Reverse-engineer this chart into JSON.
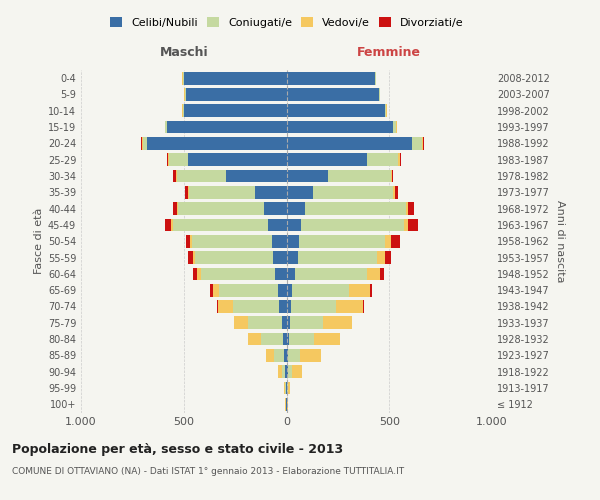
{
  "age_groups": [
    "100+",
    "95-99",
    "90-94",
    "85-89",
    "80-84",
    "75-79",
    "70-74",
    "65-69",
    "60-64",
    "55-59",
    "50-54",
    "45-49",
    "40-44",
    "35-39",
    "30-34",
    "25-29",
    "20-24",
    "15-19",
    "10-14",
    "5-9",
    "0-4"
  ],
  "birth_years": [
    "≤ 1912",
    "1913-1917",
    "1918-1922",
    "1923-1927",
    "1928-1932",
    "1933-1937",
    "1938-1942",
    "1943-1947",
    "1948-1952",
    "1953-1957",
    "1958-1962",
    "1963-1967",
    "1968-1972",
    "1973-1977",
    "1978-1982",
    "1983-1987",
    "1988-1992",
    "1993-1997",
    "1998-2002",
    "2003-2007",
    "2008-2012"
  ],
  "colors": {
    "celibe": "#3a6ea5",
    "coniugato": "#c5d9a0",
    "vedovo": "#f5c860",
    "divorziato": "#cc1111"
  },
  "males": {
    "celibe": [
      2,
      2,
      5,
      10,
      15,
      20,
      35,
      40,
      55,
      65,
      70,
      90,
      110,
      155,
      295,
      480,
      680,
      580,
      500,
      490,
      500
    ],
    "coniugato": [
      2,
      3,
      15,
      50,
      110,
      165,
      225,
      290,
      360,
      380,
      390,
      460,
      420,
      320,
      240,
      90,
      20,
      10,
      5,
      5,
      5
    ],
    "vedovo": [
      2,
      5,
      20,
      40,
      60,
      70,
      75,
      30,
      20,
      10,
      10,
      10,
      5,
      5,
      5,
      5,
      5,
      2,
      2,
      2,
      2
    ],
    "divorziato": [
      0,
      0,
      0,
      0,
      0,
      0,
      5,
      10,
      20,
      25,
      20,
      30,
      15,
      15,
      10,
      5,
      2,
      0,
      0,
      0,
      0
    ]
  },
  "females": {
    "nubile": [
      2,
      2,
      5,
      8,
      12,
      15,
      20,
      25,
      40,
      55,
      60,
      70,
      90,
      130,
      200,
      390,
      610,
      520,
      480,
      450,
      430
    ],
    "coniugata": [
      2,
      5,
      20,
      60,
      120,
      165,
      220,
      280,
      350,
      385,
      420,
      500,
      490,
      390,
      310,
      155,
      50,
      15,
      5,
      5,
      5
    ],
    "vedova": [
      2,
      8,
      50,
      100,
      130,
      140,
      130,
      100,
      65,
      40,
      30,
      20,
      10,
      10,
      5,
      5,
      5,
      2,
      2,
      2,
      2
    ],
    "divorziata": [
      0,
      0,
      0,
      0,
      0,
      0,
      5,
      10,
      20,
      30,
      40,
      50,
      30,
      15,
      5,
      5,
      2,
      0,
      0,
      0,
      0
    ]
  },
  "xlim": 1000,
  "title": "Popolazione per età, sesso e stato civile - 2013",
  "subtitle": "COMUNE DI OTTAVIANO (NA) - Dati ISTAT 1° gennaio 2013 - Elaborazione TUTTITALIA.IT",
  "ylabel_left": "Fasce di età",
  "ylabel_right": "Anni di nascita",
  "xlabel_left": "Maschi",
  "xlabel_right": "Femmine",
  "background": "#f5f5f0"
}
